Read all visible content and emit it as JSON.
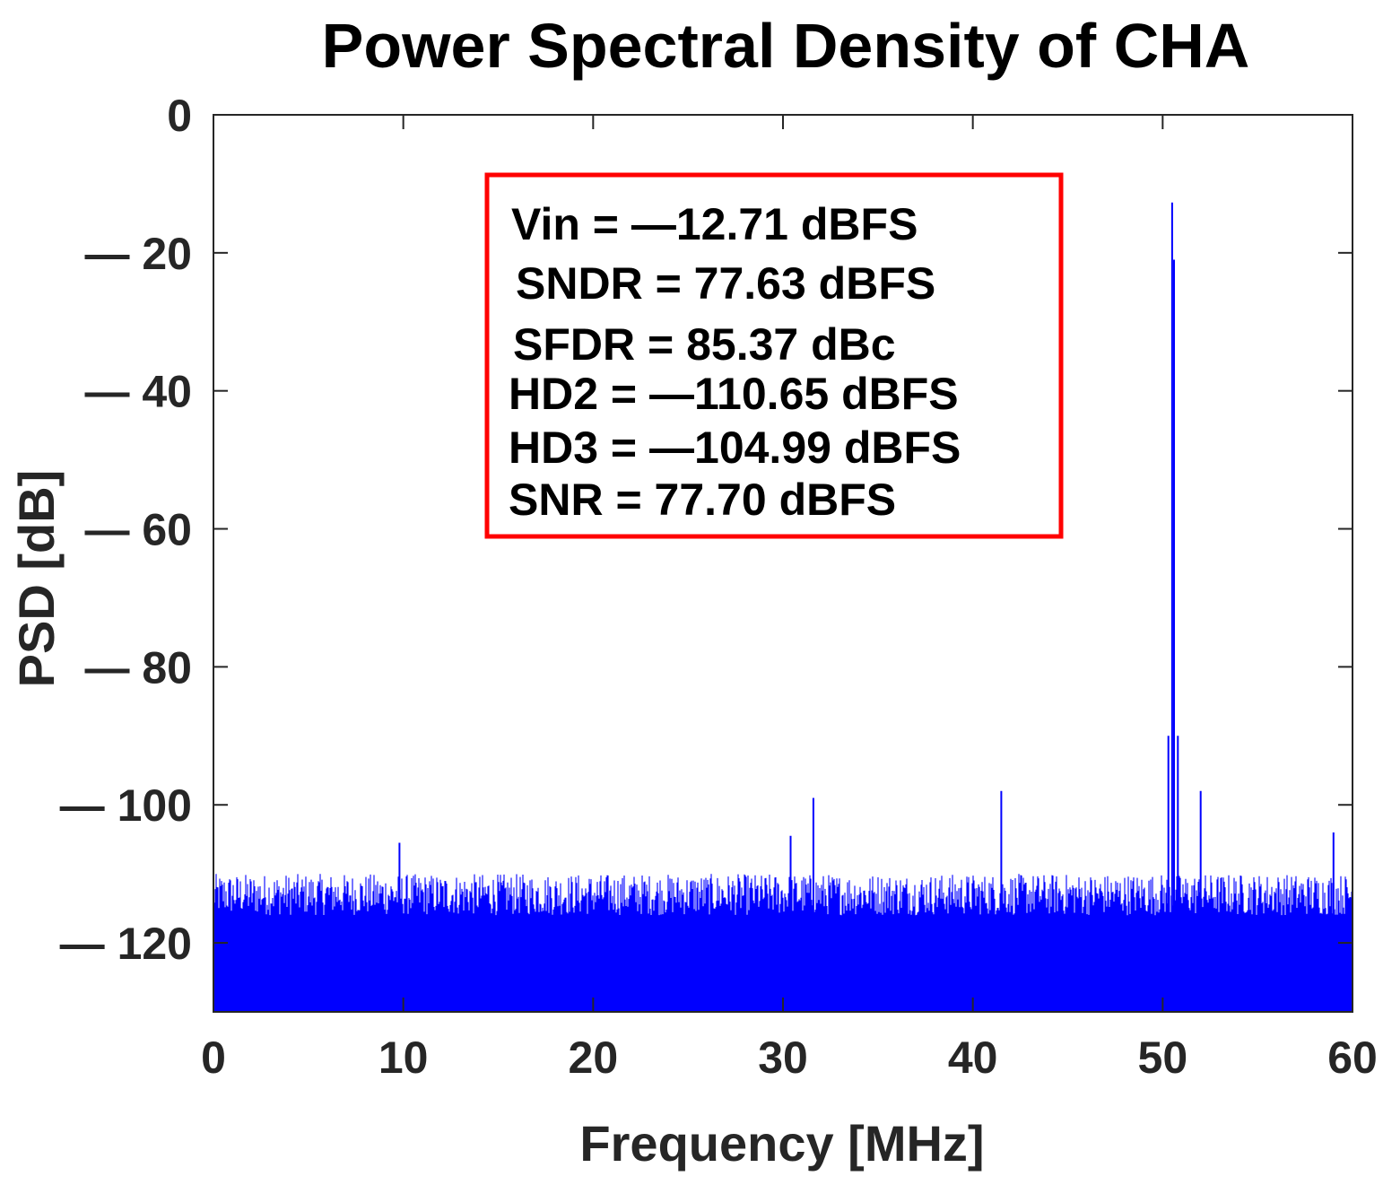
{
  "colors": {
    "trace": "#0000ff",
    "axes": "#262626",
    "annotation_border": "#ff0000",
    "background": "#ffffff"
  },
  "chart_data": {
    "type": "line",
    "title": "Power Spectral Density of CHA",
    "xlabel": "Frequency [MHz]",
    "ylabel": "PSD [dB]",
    "xlim": [
      0,
      60
    ],
    "ylim": [
      -130,
      0
    ],
    "xticks": [
      0,
      10,
      20,
      30,
      40,
      50,
      60
    ],
    "xtick_labels": [
      "0",
      "10",
      "20",
      "30",
      "40",
      "50",
      "60"
    ],
    "yticks": [
      0,
      -20,
      -40,
      -60,
      -80,
      -100,
      -120
    ],
    "ytick_labels": [
      "0",
      "— 20",
      "— 40",
      "— 60",
      "— 80",
      "— 100",
      "— 120"
    ],
    "grid": false,
    "box": true,
    "noise_floor": {
      "top_min": -116,
      "top_max": -110,
      "bottom": -130
    },
    "series": [
      {
        "points": [
          {
            "x": 0.0,
            "y": -103
          },
          {
            "x": 9.8,
            "y": -105.5
          },
          {
            "x": 30.4,
            "y": -104.5
          },
          {
            "x": 31.6,
            "y": -99
          },
          {
            "x": 41.5,
            "y": -98
          },
          {
            "x": 50.3,
            "y": -90
          },
          {
            "x": 50.5,
            "y": -12.71
          },
          {
            "x": 50.6,
            "y": -21
          },
          {
            "x": 50.8,
            "y": -90
          },
          {
            "x": 52.0,
            "y": -98
          },
          {
            "x": 59.0,
            "y": -104
          }
        ]
      }
    ],
    "annotation": {
      "lines": [
        "Vin = —12.71 dBFS",
        "SNDR = 77.63 dBFS",
        "SFDR = 85.37 dBc",
        "HD2 = —110.65 dBFS",
        "HD3 = —104.99 dBFS",
        "SNR = 77.70 dBFS"
      ]
    }
  }
}
